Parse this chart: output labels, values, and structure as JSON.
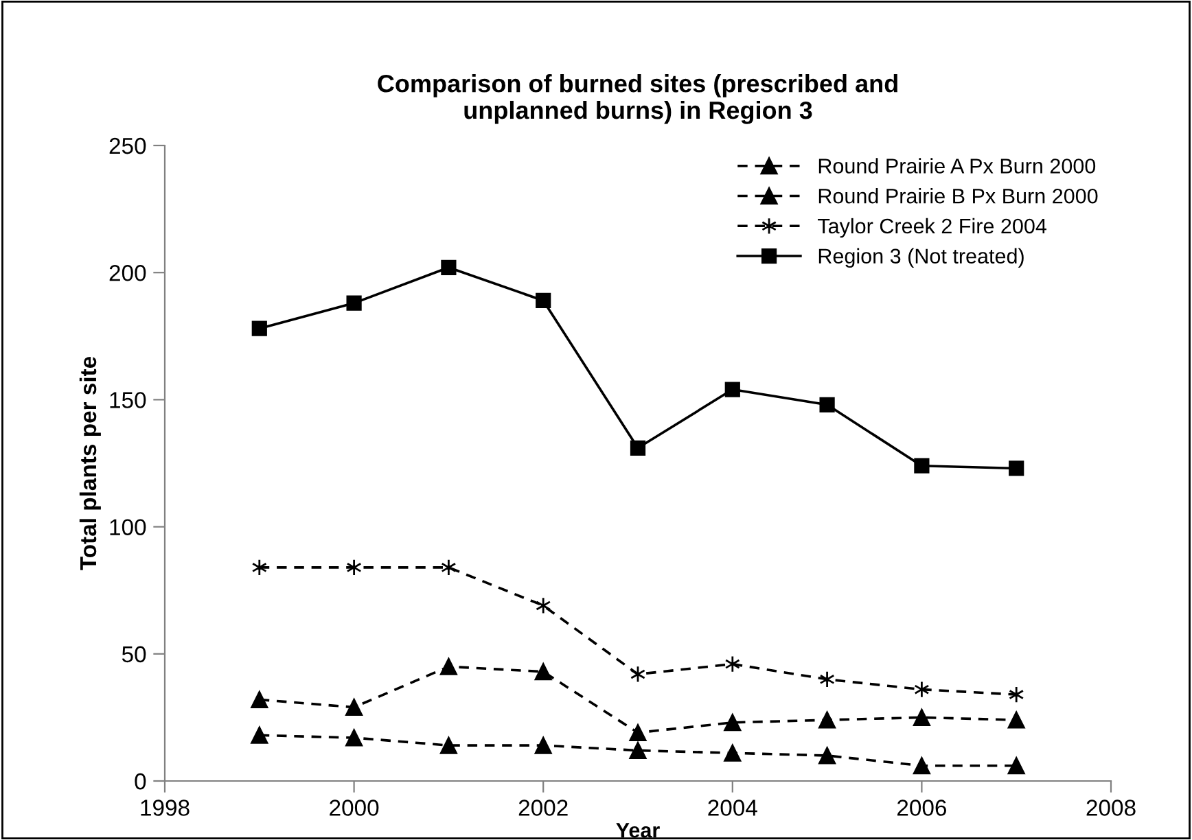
{
  "chart_data": {
    "type": "line",
    "title": "Comparison of burned sites (prescribed and\nunplanned burns) in Region 3",
    "xlabel": "Year",
    "ylabel": "Total plants per site",
    "x": [
      1999,
      2000,
      2001,
      2002,
      2003,
      2004,
      2005,
      2006,
      2007
    ],
    "series": [
      {
        "name": "Round Prairie A Px Burn 2000",
        "color": "#000000",
        "marker": "triangle",
        "line_style": "dashed",
        "values": [
          18,
          17,
          14,
          14,
          12,
          11,
          10,
          6,
          6
        ]
      },
      {
        "name": "Round Prairie B Px Burn 2000",
        "color": "#000000",
        "marker": "triangle",
        "line_style": "dashed",
        "values": [
          32,
          29,
          45,
          43,
          19,
          23,
          24,
          25,
          24
        ]
      },
      {
        "name": "Taylor Creek 2 Fire 2004",
        "color": "#000000",
        "marker": "cross",
        "line_style": "dashed",
        "values": [
          84,
          84,
          84,
          69,
          42,
          46,
          40,
          36,
          34
        ]
      },
      {
        "name": "Region 3 (Not treated)",
        "color": "#000000",
        "marker": "square",
        "line_style": "solid",
        "values": [
          178,
          188,
          202,
          189,
          131,
          154,
          148,
          124,
          123
        ]
      }
    ],
    "xlim": [
      1998,
      2008
    ],
    "xticks": [
      1998,
      2000,
      2002,
      2004,
      2006,
      2008
    ],
    "ylim": [
      0,
      250
    ],
    "yticks": [
      0,
      50,
      100,
      150,
      200,
      250
    ],
    "grid": false,
    "legend": "top right"
  }
}
